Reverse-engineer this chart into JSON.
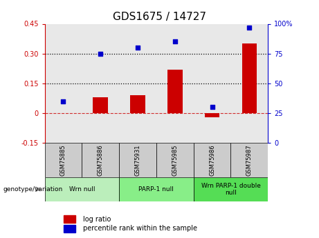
{
  "title": "GDS1675 / 14727",
  "samples": [
    "GSM75885",
    "GSM75886",
    "GSM75931",
    "GSM75985",
    "GSM75986",
    "GSM75987"
  ],
  "log_ratio": [
    0.0,
    0.08,
    0.09,
    0.22,
    -0.02,
    0.35
  ],
  "percentile_rank": [
    35,
    75,
    80,
    85,
    30,
    97
  ],
  "groups": [
    {
      "label": "Wrn null",
      "samples": [
        0,
        1
      ],
      "color": "#bbeebb"
    },
    {
      "label": "PARP-1 null",
      "samples": [
        2,
        3
      ],
      "color": "#88ee88"
    },
    {
      "label": "Wrn PARP-1 double\nnull",
      "samples": [
        4,
        5
      ],
      "color": "#55dd55"
    }
  ],
  "bar_color": "#cc0000",
  "dot_color": "#0000cc",
  "ylim_left": [
    -0.15,
    0.45
  ],
  "ylim_right": [
    0,
    100
  ],
  "yticks_left": [
    -0.15,
    0.0,
    0.15,
    0.3,
    0.45
  ],
  "yticks_right": [
    0,
    25,
    50,
    75,
    100
  ],
  "hlines": [
    0.15,
    0.3
  ],
  "plot_bg_color": "#e8e8e8",
  "tick_label_color_left": "#cc0000",
  "tick_label_color_right": "#0000cc",
  "sample_box_color": "#cccccc",
  "legend_bar_label": "log ratio",
  "legend_dot_label": "percentile rank within the sample",
  "genotype_label": "genotype/variation"
}
